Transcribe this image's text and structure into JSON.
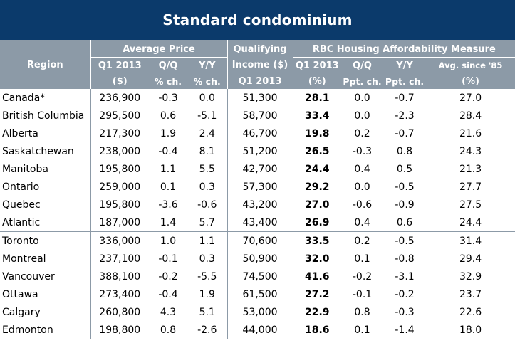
{
  "title": "Standard condominium",
  "headers": {
    "region": "Region",
    "avg_price": "Average Price",
    "qualifying_line1": "Qualifying",
    "rbc_measure": "RBC Housing Affordability Measure",
    "avg_q1": "Q1 2013",
    "avg_qq": "Q/Q",
    "avg_yy": "Y/Y",
    "avg_unit": "($)",
    "avg_qq_unit": "% ch.",
    "avg_yy_unit": "% ch.",
    "qualifying_line2": "Income ($)",
    "qualifying_line3": "Q1 2013",
    "rbc_q1": "Q1 2013",
    "rbc_qq": "Q/Q",
    "rbc_yy": "Y/Y",
    "rbc_avg": "Avg. since '85",
    "rbc_q1_unit": "(%)",
    "rbc_qq_unit": "Ppt. ch.",
    "rbc_yy_unit": "Ppt. ch.",
    "rbc_avg_unit": "(%)"
  },
  "rows": [
    {
      "region": "Canada*",
      "price": "236,900",
      "pq": "-0.3",
      "py": "0.0",
      "income": "51,300",
      "afq1": "28.1",
      "afqq": "0.0",
      "afyy": "-0.7",
      "afavg": "27.0"
    },
    {
      "region": "British Columbia",
      "price": "295,500",
      "pq": "0.6",
      "py": "-5.1",
      "income": "58,700",
      "afq1": "33.4",
      "afqq": "0.0",
      "afyy": "-2.3",
      "afavg": "28.4"
    },
    {
      "region": "Alberta",
      "price": "217,300",
      "pq": "1.9",
      "py": "2.4",
      "income": "46,700",
      "afq1": "19.8",
      "afqq": "0.2",
      "afyy": "-0.7",
      "afavg": "21.6"
    },
    {
      "region": "Saskatchewan",
      "price": "238,000",
      "pq": "-0.4",
      "py": "8.1",
      "income": "51,200",
      "afq1": "26.5",
      "afqq": "-0.3",
      "afyy": "0.8",
      "afavg": "24.3"
    },
    {
      "region": "Manitoba",
      "price": "195,800",
      "pq": "1.1",
      "py": "5.5",
      "income": "42,700",
      "afq1": "24.4",
      "afqq": "0.4",
      "afyy": "0.5",
      "afavg": "21.3"
    },
    {
      "region": "Ontario",
      "price": "259,000",
      "pq": "0.1",
      "py": "0.3",
      "income": "57,300",
      "afq1": "29.2",
      "afqq": "0.0",
      "afyy": "-0.5",
      "afavg": "27.7"
    },
    {
      "region": "Quebec",
      "price": "195,800",
      "pq": "-3.6",
      "py": "-0.6",
      "income": "43,200",
      "afq1": "27.0",
      "afqq": "-0.6",
      "afyy": "-0.9",
      "afavg": "27.5"
    },
    {
      "region": "Atlantic",
      "price": "187,000",
      "pq": "1.4",
      "py": "5.7",
      "income": "43,400",
      "afq1": "26.9",
      "afqq": "0.4",
      "afyy": "0.6",
      "afavg": "24.4"
    },
    {
      "region": "Toronto",
      "price": "336,000",
      "pq": "1.0",
      "py": "1.1",
      "income": "70,600",
      "afq1": "33.5",
      "afqq": "0.2",
      "afyy": "-0.5",
      "afavg": "31.4"
    },
    {
      "region": "Montreal",
      "price": "237,100",
      "pq": "-0.1",
      "py": "0.3",
      "income": "50,900",
      "afq1": "32.0",
      "afqq": "0.1",
      "afyy": "-0.8",
      "afavg": "29.4"
    },
    {
      "region": "Vancouver",
      "price": "388,100",
      "pq": "-0.2",
      "py": "-5.5",
      "income": "74,500",
      "afq1": "41.6",
      "afqq": "-0.2",
      "afyy": "-3.1",
      "afavg": "32.9"
    },
    {
      "region": "Ottawa",
      "price": "273,400",
      "pq": "-0.4",
      "py": "1.9",
      "income": "61,500",
      "afq1": "27.2",
      "afqq": "-0.1",
      "afyy": "-0.2",
      "afavg": "23.7"
    },
    {
      "region": "Calgary",
      "price": "260,800",
      "pq": "4.3",
      "py": "5.1",
      "income": "53,000",
      "afq1": "22.9",
      "afqq": "0.8",
      "afyy": "-0.3",
      "afavg": "22.6"
    },
    {
      "region": "Edmonton",
      "price": "198,800",
      "pq": "0.8",
      "py": "-2.6",
      "income": "44,000",
      "afq1": "18.6",
      "afqq": "0.1",
      "afyy": "-1.4",
      "afavg": "18.0"
    }
  ],
  "colors": {
    "title_bg": "#0b3a6b",
    "header_bg": "#8c9aa7",
    "header_text": "#ffffff",
    "rule": "#8c9aa7"
  }
}
